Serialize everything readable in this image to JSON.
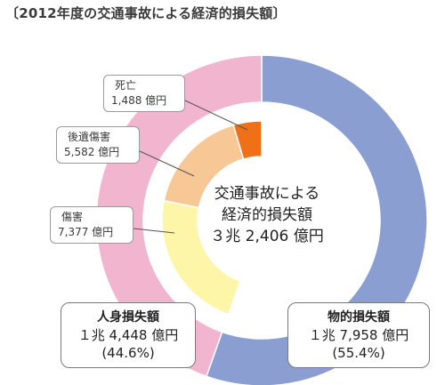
{
  "title": "〔2012年度の交通事故による経済的損失額〕",
  "center": {
    "line1": "交通事故による",
    "line2": "経済的損失額",
    "line3": "３兆 2,406 億円"
  },
  "colors": {
    "property": "#8b9ed2",
    "human": "#f2b5cf",
    "death": "#f07017",
    "after_effects": "#f7c896",
    "injury": "#fdf6a8",
    "stroke": "#ffffff"
  },
  "chart_data": {
    "type": "pie",
    "title": "〔2012年度の交通事故による経済的損失額〕",
    "unit": "億円",
    "total": 32406,
    "outer_ring": [
      {
        "name": "物的損失額",
        "value": 17958,
        "value_text": "１兆 7,958 億円",
        "percent": 55.4,
        "percent_text": "(55.4%)",
        "color": "#8b9ed2"
      },
      {
        "name": "人身損失額",
        "value": 14448,
        "value_text": "１兆 4,448 億円",
        "percent": 44.6,
        "percent_text": "(44.6%)",
        "color": "#f2b5cf"
      }
    ],
    "inner_ring": [
      {
        "name": "死亡",
        "value": 1488,
        "value_text": "1,488 億円",
        "color": "#f07017"
      },
      {
        "name": "後遺傷害",
        "value": 5582,
        "value_text": "5,582 億円",
        "color": "#f7c896"
      },
      {
        "name": "傷害",
        "value": 7377,
        "value_text": "7,377 億円",
        "color": "#fdf6a8"
      }
    ]
  }
}
